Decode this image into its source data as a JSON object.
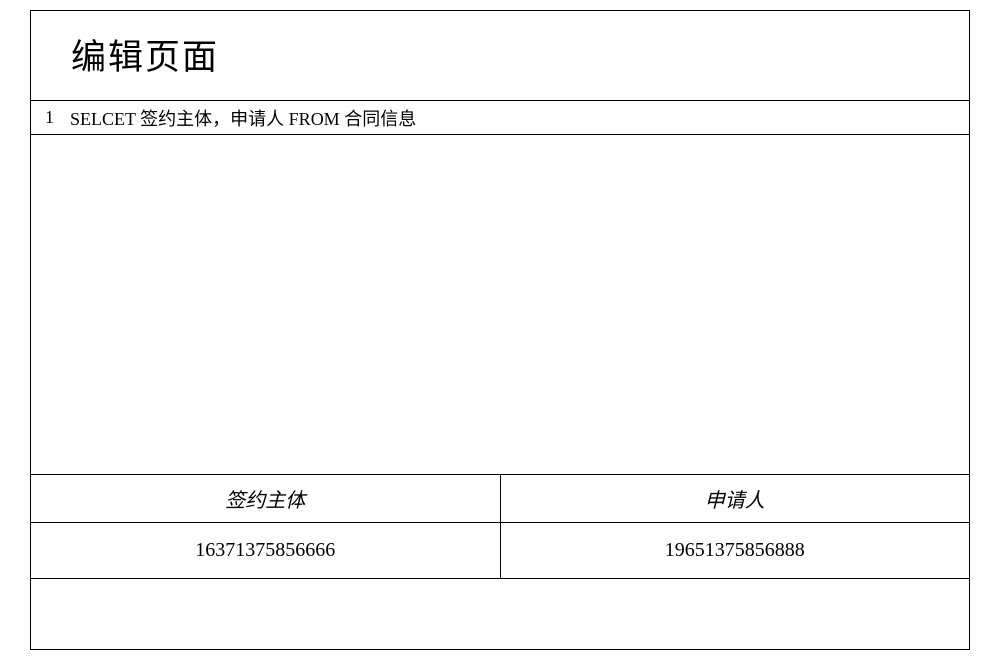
{
  "page": {
    "title": "编辑页面"
  },
  "query": {
    "line_number": "1",
    "text": "SELCET 签约主体，申请人 FROM 合同信息"
  },
  "result_table": {
    "type": "table",
    "columns": [
      "签约主体",
      "申请人"
    ],
    "rows": [
      [
        "16371375856666",
        "19651375856888"
      ]
    ],
    "border_color": "#000000",
    "background_color": "#ffffff",
    "header_font_family": "KaiTi",
    "header_font_size": 20,
    "data_font_family": "Times New Roman",
    "data_font_size": 20
  },
  "styling": {
    "border_color": "#000000",
    "background_color": "#ffffff",
    "title_font_size": 35,
    "title_font_family": "KaiTi"
  }
}
